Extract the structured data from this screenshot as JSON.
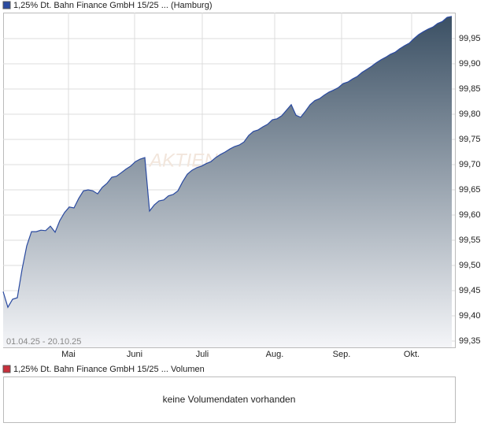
{
  "chart_data": {
    "type": "area",
    "title": "1,25% Dt. Bahn Finance GmbH 15/25 ... (Hamburg)",
    "date_range": "01.04.25 - 20.10.25",
    "watermark": "AKTIEN",
    "xtick_labels": [
      "Mai",
      "Juni",
      "Juli",
      "Aug.",
      "Sep.",
      "Okt."
    ],
    "values": [
      99.448,
      99.417,
      99.433,
      99.436,
      99.492,
      99.539,
      99.567,
      99.567,
      99.57,
      99.569,
      99.578,
      99.566,
      99.589,
      99.605,
      99.616,
      99.614,
      99.633,
      99.648,
      99.65,
      99.648,
      99.642,
      99.655,
      99.663,
      99.675,
      99.677,
      99.684,
      99.691,
      99.697,
      99.706,
      99.711,
      99.714,
      99.608,
      99.62,
      99.628,
      99.63,
      99.638,
      99.641,
      99.648,
      99.666,
      99.681,
      99.689,
      99.694,
      99.697,
      99.702,
      99.706,
      99.714,
      99.72,
      99.725,
      99.731,
      99.736,
      99.739,
      99.745,
      99.758,
      99.766,
      99.769,
      99.775,
      99.78,
      99.789,
      99.791,
      99.797,
      99.808,
      99.819,
      99.798,
      99.794,
      99.806,
      99.819,
      99.827,
      99.831,
      99.838,
      99.844,
      99.848,
      99.853,
      99.861,
      99.864,
      99.87,
      99.875,
      99.883,
      99.889,
      99.895,
      99.902,
      99.908,
      99.913,
      99.919,
      99.923,
      99.93,
      99.936,
      99.941,
      99.95,
      99.958,
      99.964,
      99.969,
      99.973,
      99.98,
      99.984,
      99.992,
      99.994
    ],
    "color": "#2a4aa0",
    "ylim": [
      99.3375,
      100.0016
    ],
    "yticks": [
      {
        "value": 99.35,
        "label": "99,35"
      },
      {
        "value": 99.4,
        "label": "99,40"
      },
      {
        "value": 99.45,
        "label": "99,45"
      },
      {
        "value": 99.5,
        "label": "99,50"
      },
      {
        "value": 99.55,
        "label": "99,55"
      },
      {
        "value": 99.6,
        "label": "99,60"
      },
      {
        "value": 99.65,
        "label": "99,65"
      },
      {
        "value": 99.7,
        "label": "99,70"
      },
      {
        "value": 99.75,
        "label": "99,75"
      },
      {
        "value": 99.8,
        "label": "99,80"
      },
      {
        "value": 99.85,
        "label": "99,85"
      },
      {
        "value": 99.9,
        "label": "99,90"
      },
      {
        "value": 99.95,
        "label": "99,95"
      }
    ],
    "grid": true
  },
  "volume_panel": {
    "title": "1,25% Dt. Bahn Finance GmbH 15/25 ... Volumen",
    "message": "keine Volumendaten vorhanden"
  }
}
